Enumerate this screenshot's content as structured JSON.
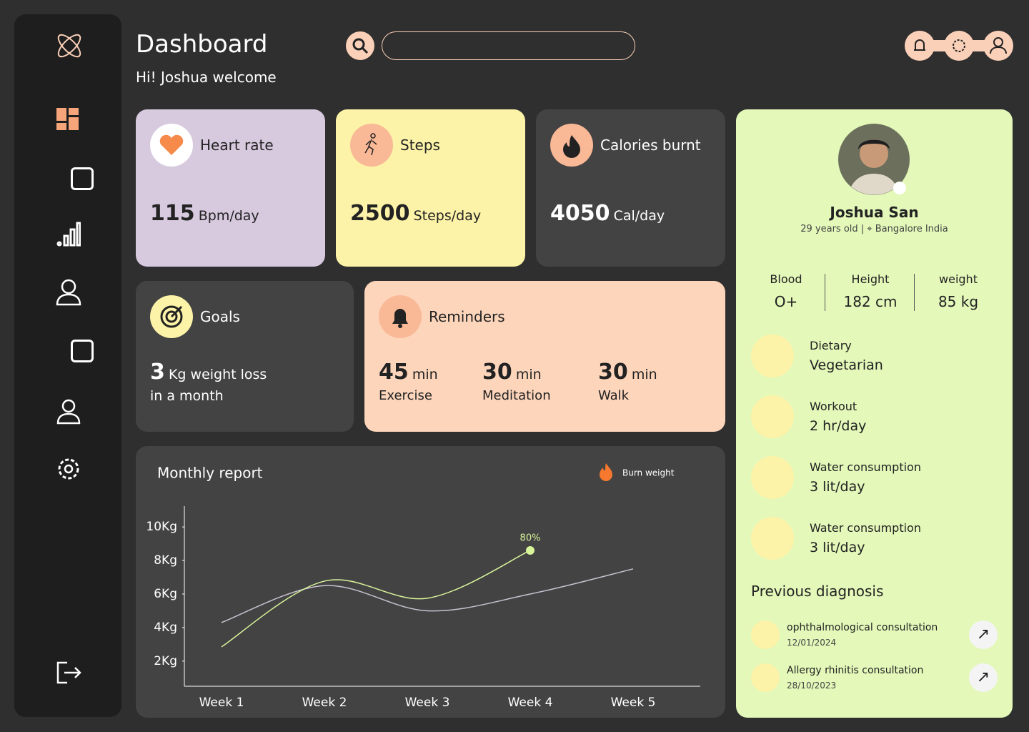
{
  "header": {
    "title": "Dashboard",
    "greeting": "Hi! Joshua welcome"
  },
  "stats": [
    {
      "label": "Heart rate",
      "value": 115,
      "unit": "Bpm/day"
    },
    {
      "label": "Steps",
      "value": 2500,
      "unit": "Steps/day"
    },
    {
      "label": "Calories burnt",
      "value": 4050,
      "unit": "Cal/day"
    }
  ],
  "goals": {
    "label": "Goals",
    "value": 3,
    "text": "Kg weight loss",
    "note": "in a month"
  },
  "reminders": {
    "title": "Reminders",
    "items": [
      {
        "value": 45,
        "unit": "min",
        "label": "Exercise"
      },
      {
        "value": 30,
        "unit": "min",
        "label": "Meditation"
      },
      {
        "value": 30,
        "unit": "min",
        "label": "Walk"
      }
    ]
  },
  "profile": {
    "name": "Joshua San",
    "age": "29 years old",
    "location": "Bangalore India",
    "stats": [
      {
        "label": "Blood",
        "value": "O+"
      },
      {
        "label": "Height",
        "value": "182 cm"
      },
      {
        "label": "weight",
        "value": "85 kg"
      }
    ],
    "details": [
      {
        "label": "Dietary",
        "value": "Vegetarian"
      },
      {
        "label": "Workout",
        "value": "2 hr/day"
      },
      {
        "label": "Water consumption",
        "value": "3 lit/day"
      },
      {
        "label": "Water consumption",
        "value": "3 lit/day"
      }
    ],
    "diagnosis_title": "Previous diagnosis",
    "diagnoses": [
      {
        "title": "ophthalmological consultation",
        "date": "12/01/2024"
      },
      {
        "title": "Allergy rhinitis consultation",
        "date": "28/10/2023"
      }
    ]
  },
  "chart_data": {
    "type": "line",
    "title": "Monthly report",
    "categories": [
      "Week 1",
      "Week 2",
      "Week 3",
      "Week 4",
      "Week 5"
    ],
    "series": [
      {
        "name": "Burn weight",
        "color": "#d9f59a",
        "values": [
          2.85,
          6.77,
          5.75,
          8.6,
          null
        ]
      },
      {
        "color": "#c9c2d2",
        "values": [
          4.3,
          6.5,
          5.0,
          6.0,
          7.5
        ]
      }
    ],
    "ylim": [
      0.5,
      11.2
    ],
    "yticks": [
      {
        "value": 2,
        "label": "2Kg"
      },
      {
        "value": 4,
        "label": "4Kg"
      },
      {
        "value": 6,
        "label": "6Kg"
      },
      {
        "value": 8,
        "label": "8Kg"
      },
      {
        "value": 10,
        "label": "10Kg"
      }
    ],
    "annotation": "80%",
    "legend": "top-right"
  }
}
